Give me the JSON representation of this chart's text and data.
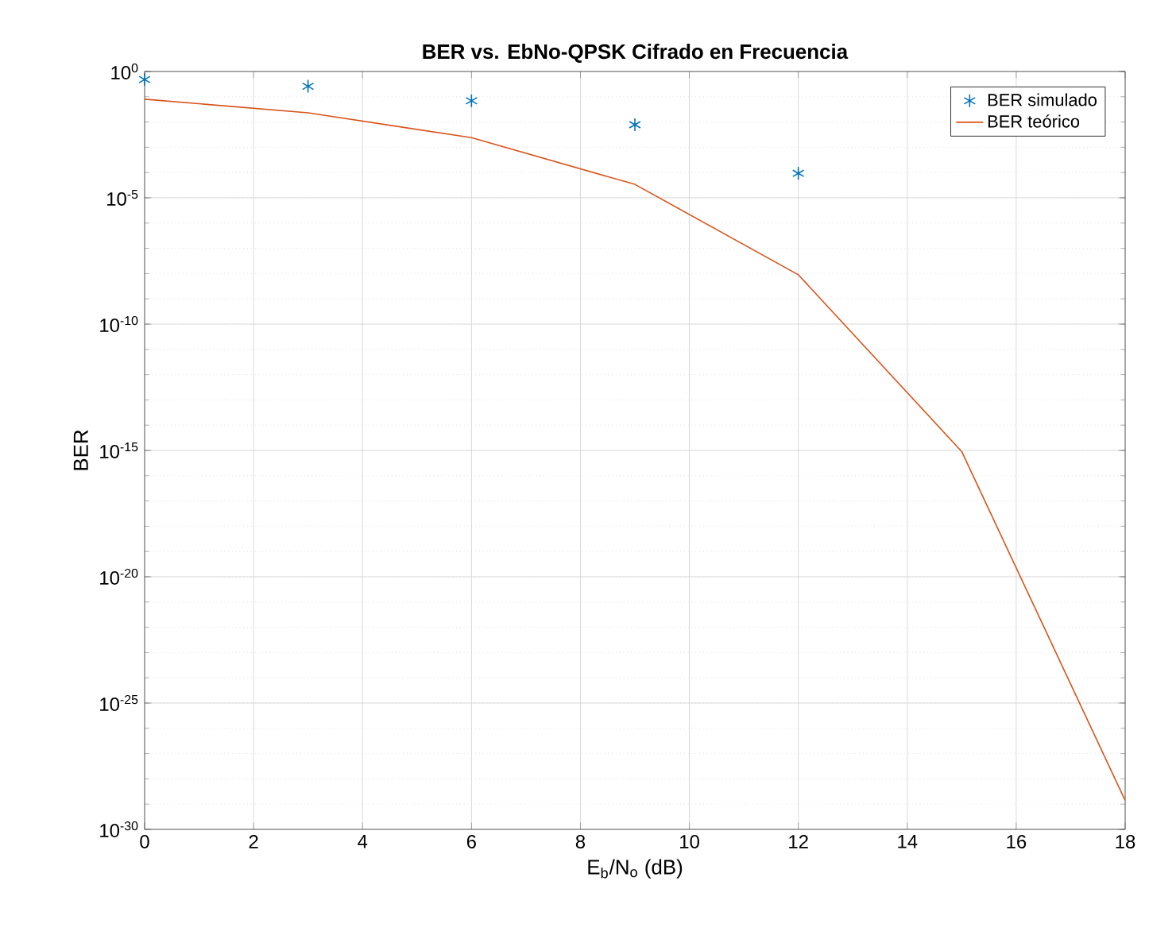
{
  "chart_data": {
    "type": "line",
    "title": "**BER vs. EbNo-QPSK Cifrado en Frecuencia**",
    "xlabel": "E$_{b}$/N$_{o}$ (dB)",
    "ylabel": "BER",
    "x": [
      0,
      3,
      6,
      9,
      12,
      15,
      18
    ],
    "series": [
      {
        "name": "BER simulado",
        "type": "scatter",
        "marker": "cross",
        "color": "#0072bd",
        "x": [
          0,
          3,
          6,
          9,
          12
        ],
        "values": [
          0.48,
          0.26,
          0.069,
          0.0078,
          9.3e-05
        ]
      },
      {
        "name": "BER teórico",
        "marker": "none",
        "color": "#d95319",
        "values": [
          0.08,
          0.023,
          0.0024,
          3.4e-05,
          9e-09,
          9e-16,
          1.4e-29
        ]
      }
    ],
    "log": "y",
    "grid": true,
    "legend": "top right",
    "xlim": [
      0,
      18
    ],
    "ylim": [
      1e-30,
      1
    ],
    "xticks": [
      0,
      2,
      4,
      6,
      8,
      10,
      12,
      14,
      16,
      18
    ],
    "yticks": [
      {
        "value": 1e-30,
        "label": "10$^{-30}$"
      },
      {
        "value": 1e-25,
        "label": "10$^{-25}$"
      },
      {
        "value": 1e-20,
        "label": "10$^{-20}$"
      },
      {
        "value": 1e-15,
        "label": "10$^{-15}$"
      },
      {
        "value": 1e-10,
        "label": "10$^{-10}$"
      },
      {
        "value": 1e-05,
        "label": "10$^{-5}$"
      },
      {
        "value": 1,
        "label": "10$^{0}$"
      }
    ]
  }
}
